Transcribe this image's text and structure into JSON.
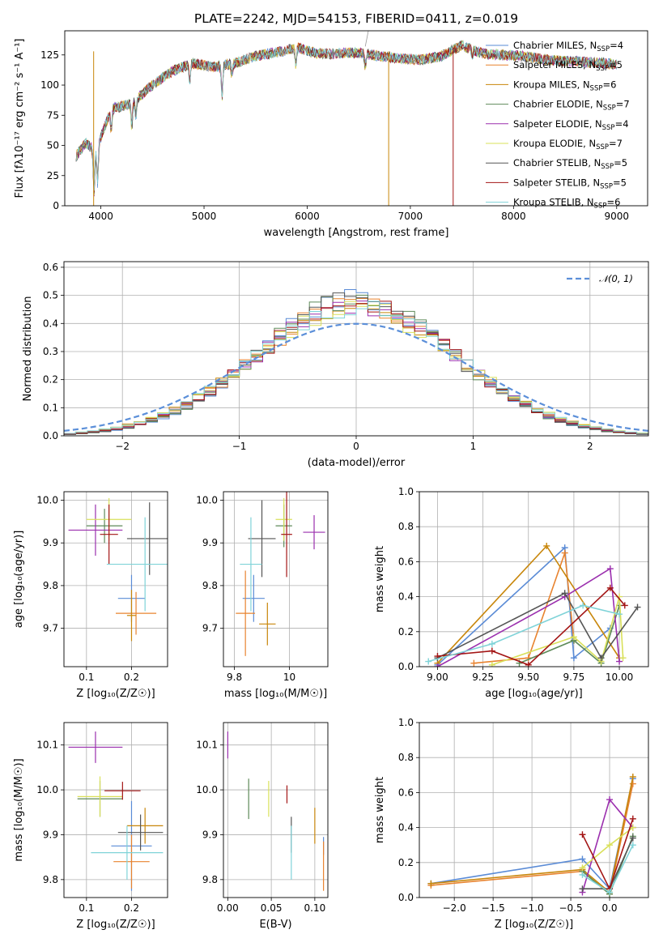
{
  "title": "PLATE=2242, MJD=54153, FIBERID=0411, z=0.019",
  "colors": {
    "Chabrier MILES": "#5a8bd6",
    "Salpeter MILES": "#e8832f",
    "Kroupa MILES": "#c8860a",
    "Chabrier ELODIE": "#5e8a59",
    "Salpeter ELODIE": "#9b2fae",
    "Kroupa ELODIE": "#d9e05a",
    "Chabrier STELIB": "#555555",
    "Salpeter STELIB": "#a31515",
    "Kroupa STELIB": "#7fd3d8"
  },
  "chart_data": [
    {
      "id": "spectrum",
      "type": "line",
      "xlabel": "wavelength [Angstrom, rest frame]",
      "ylabel": "Flux [fλ10⁻¹⁷ erg cm⁻² s⁻¹ A⁻¹]",
      "xlim": [
        3650,
        9300
      ],
      "ylim": [
        0,
        145
      ],
      "xticks": [
        4000,
        5000,
        6000,
        7000,
        8000,
        9000
      ],
      "yticks": [
        0,
        25,
        50,
        75,
        100,
        125
      ],
      "grid": false,
      "legend_position": "right",
      "x": [
        3750,
        3850,
        3950,
        4100,
        4300,
        4500,
        4700,
        4900,
        5100,
        5300,
        5500,
        5700,
        5900,
        6100,
        6300,
        6500,
        6700,
        6900,
        7100,
        7300,
        7500,
        7700,
        7900,
        8100,
        8300,
        8500,
        8700,
        8900,
        9000
      ],
      "y": [
        40,
        52,
        45,
        80,
        85,
        100,
        112,
        118,
        115,
        118,
        124,
        127,
        131,
        126,
        126,
        127,
        124,
        122,
        121,
        124,
        133,
        126,
        125,
        124,
        121,
        120,
        119,
        118,
        117
      ],
      "series": [
        {
          "name": "Chabrier MILES, N_SSP=4"
        },
        {
          "name": "Salpeter MILES, N_SSP=5"
        },
        {
          "name": "Kroupa MILES, N_SSP=6"
        },
        {
          "name": "Chabrier ELODIE, N_SSP=7"
        },
        {
          "name": "Salpeter ELODIE, N_SSP=4"
        },
        {
          "name": "Kroupa ELODIE, N_SSP=7"
        },
        {
          "name": "Chabrier STELIB, N_SSP=5"
        },
        {
          "name": "Salpeter STELIB, N_SSP=5"
        },
        {
          "name": "Kroupa STELIB, N_SSP=6"
        }
      ]
    },
    {
      "id": "residuals",
      "type": "line",
      "xlabel": "(data-model)/error",
      "ylabel": "Normed distribution",
      "xlim": [
        -2.5,
        2.5
      ],
      "ylim": [
        0,
        0.62
      ],
      "xticks": [
        -2,
        -1,
        0,
        1,
        2
      ],
      "yticks": [
        0.0,
        0.1,
        0.2,
        0.3,
        0.4,
        0.5,
        0.6
      ],
      "grid": true,
      "legend": "𝒩(0, 1)",
      "legend_position": "top-right",
      "bin_width": 0.1
    },
    {
      "id": "age-vs-Z",
      "type": "scatter",
      "xlabel": "Z [log₁₀(Z/Z☉)]",
      "ylabel": "age  [log₁₀(age/yr)]",
      "xlim": [
        0.05,
        0.28
      ],
      "ylim": [
        9.61,
        10.02
      ],
      "xticks": [
        0.1,
        0.2
      ],
      "yticks": [
        9.7,
        9.8,
        9.9,
        10.0
      ],
      "grid": true,
      "points": [
        {
          "series": "Chabrier MILES",
          "x": 0.2,
          "y": 9.77,
          "xerr": 0.03,
          "yerr": 0.055
        },
        {
          "series": "Salpeter MILES",
          "x": 0.21,
          "y": 9.735,
          "xerr": 0.045,
          "yerr": 0.05
        },
        {
          "series": "Kroupa MILES",
          "x": 0.2,
          "y": 9.73,
          "xerr": 0.01,
          "yerr": 0.06
        },
        {
          "series": "Chabrier ELODIE",
          "x": 0.14,
          "y": 9.94,
          "xerr": 0.04,
          "yerr": 0.04
        },
        {
          "series": "Salpeter ELODIE",
          "x": 0.12,
          "y": 9.93,
          "xerr": 0.06,
          "yerr": 0.06
        },
        {
          "series": "Kroupa ELODIE",
          "x": 0.15,
          "y": 9.955,
          "xerr": 0.05,
          "yerr": 0.05
        },
        {
          "series": "Chabrier STELIB",
          "x": 0.24,
          "y": 9.91,
          "xerr": 0.05,
          "yerr": 0.085
        },
        {
          "series": "Salpeter STELIB",
          "x": 0.15,
          "y": 9.92,
          "xerr": 0.02,
          "yerr": 0.07
        },
        {
          "series": "Kroupa STELIB",
          "x": 0.23,
          "y": 9.85,
          "xerr": 0.085,
          "yerr": 0.11
        }
      ]
    },
    {
      "id": "age-vs-mass",
      "type": "scatter",
      "xlabel": "mass [log₁₀(M/M☉)]",
      "ylabel": "",
      "xlim": [
        9.76,
        10.14
      ],
      "ylim": [
        9.61,
        10.02
      ],
      "xticks": [
        9.8,
        10.0
      ],
      "yticks": [
        9.7,
        9.8,
        9.9,
        10.0
      ],
      "grid": true,
      "points": [
        {
          "series": "Chabrier MILES",
          "x": 9.87,
          "y": 9.77,
          "xerr": 0.04,
          "yerr": 0.055
        },
        {
          "series": "Salpeter MILES",
          "x": 9.84,
          "y": 9.735,
          "xerr": 0.035,
          "yerr": 0.1
        },
        {
          "series": "Kroupa MILES",
          "x": 9.92,
          "y": 9.71,
          "xerr": 0.03,
          "yerr": 0.05
        },
        {
          "series": "Chabrier ELODIE",
          "x": 9.98,
          "y": 9.94,
          "xerr": 0.03,
          "yerr": 0.05
        },
        {
          "series": "Salpeter ELODIE",
          "x": 10.09,
          "y": 9.925,
          "xerr": 0.04,
          "yerr": 0.04
        },
        {
          "series": "Kroupa ELODIE",
          "x": 9.98,
          "y": 9.955,
          "xerr": 0.03,
          "yerr": 0.05
        },
        {
          "series": "Chabrier STELIB",
          "x": 9.9,
          "y": 9.91,
          "xerr": 0.05,
          "yerr": 0.09
        },
        {
          "series": "Salpeter STELIB",
          "x": 9.99,
          "y": 9.92,
          "xerr": 0.02,
          "yerr": 0.1
        },
        {
          "series": "Kroupa STELIB",
          "x": 9.86,
          "y": 9.85,
          "xerr": 0.04,
          "yerr": 0.11
        }
      ]
    },
    {
      "id": "mass-weight-vs-age",
      "type": "line",
      "xlabel": "age  [log₁₀(age/yr)]",
      "ylabel": "mass weight",
      "xlim": [
        8.9,
        10.16
      ],
      "ylim": [
        0,
        1.0
      ],
      "xticks": [
        9.0,
        9.25,
        9.5,
        9.75,
        10.0
      ],
      "xtick_labels": [
        "9.00",
        "9.25",
        "9.50",
        "9.75",
        "10.00"
      ],
      "yticks": [
        0.0,
        0.2,
        0.4,
        0.6,
        0.8,
        1.0
      ],
      "grid": true,
      "series": [
        {
          "key": "Chabrier MILES",
          "x": [
            9.0,
            9.7,
            9.75,
            9.95
          ],
          "y": [
            0.01,
            0.68,
            0.05,
            0.22
          ]
        },
        {
          "key": "Salpeter MILES",
          "x": [
            9.2,
            9.5,
            9.7,
            9.75
          ],
          "y": [
            0.02,
            0.05,
            0.65,
            0.15
          ]
        },
        {
          "key": "Kroupa MILES",
          "x": [
            9.0,
            9.6,
            10.0
          ],
          "y": [
            0.02,
            0.69,
            0.05
          ]
        },
        {
          "key": "Chabrier ELODIE",
          "x": [
            9.45,
            9.75,
            9.9,
            10.0
          ],
          "y": [
            0.02,
            0.15,
            0.02,
            0.35
          ]
        },
        {
          "key": "Salpeter ELODIE",
          "x": [
            9.0,
            9.7,
            9.95,
            10.0
          ],
          "y": [
            0.0,
            0.4,
            0.56,
            0.03
          ]
        },
        {
          "key": "Kroupa ELODIE",
          "x": [
            9.3,
            9.75,
            9.9,
            10.0,
            10.02
          ],
          "y": [
            0.01,
            0.17,
            0.03,
            0.4,
            0.05
          ]
        },
        {
          "key": "Chabrier STELIB",
          "x": [
            9.0,
            9.7,
            9.9,
            10.1
          ],
          "y": [
            0.05,
            0.42,
            0.05,
            0.34
          ]
        },
        {
          "key": "Salpeter STELIB",
          "x": [
            9.0,
            9.3,
            9.5,
            9.95,
            10.03
          ],
          "y": [
            0.06,
            0.09,
            0.01,
            0.45,
            0.35
          ]
        },
        {
          "key": "Kroupa STELIB",
          "x": [
            8.95,
            9.3,
            9.8,
            10.0
          ],
          "y": [
            0.03,
            0.13,
            0.35,
            0.3
          ]
        }
      ]
    },
    {
      "id": "mass-vs-Z",
      "type": "scatter",
      "xlabel": "Z [log₁₀(Z/Z☉)]",
      "ylabel": "mass [log₁₀(M/M☉)]",
      "xlim": [
        0.05,
        0.28
      ],
      "ylim": [
        9.76,
        10.15
      ],
      "xticks": [
        0.1,
        0.2
      ],
      "yticks": [
        9.8,
        9.9,
        10.0,
        10.1
      ],
      "grid": true,
      "points": [
        {
          "series": "Chabrier MILES",
          "x": 0.2,
          "y": 9.875,
          "xerr": 0.045,
          "yerr": 0.1
        },
        {
          "series": "Salpeter MILES",
          "x": 0.2,
          "y": 9.84,
          "xerr": 0.04,
          "yerr": 0.06
        },
        {
          "series": "Kroupa MILES",
          "x": 0.23,
          "y": 9.92,
          "xerr": 0.04,
          "yerr": 0.04
        },
        {
          "series": "Chabrier ELODIE",
          "x": 0.13,
          "y": 9.98,
          "xerr": 0.05,
          "yerr": 0.04
        },
        {
          "series": "Salpeter ELODIE",
          "x": 0.12,
          "y": 10.095,
          "xerr": 0.06,
          "yerr": 0.035
        },
        {
          "series": "Kroupa ELODIE",
          "x": 0.13,
          "y": 9.985,
          "xerr": 0.05,
          "yerr": 0.045
        },
        {
          "series": "Chabrier STELIB",
          "x": 0.22,
          "y": 9.905,
          "xerr": 0.05,
          "yerr": 0.04
        },
        {
          "series": "Salpeter STELIB",
          "x": 0.18,
          "y": 9.998,
          "xerr": 0.04,
          "yerr": 0.02
        },
        {
          "series": "Kroupa STELIB",
          "x": 0.19,
          "y": 9.86,
          "xerr": 0.08,
          "yerr": 0.06
        }
      ]
    },
    {
      "id": "mass-vs-ebv",
      "type": "scatter",
      "xlabel": "E(B-V)",
      "ylabel": "",
      "xlim": [
        -0.005,
        0.115
      ],
      "ylim": [
        9.76,
        10.15
      ],
      "xticks": [
        0.0,
        0.05,
        0.1
      ],
      "xtick_labels": [
        "0.00",
        "0.05",
        "0.10"
      ],
      "yticks": [
        9.8,
        9.9,
        10.0,
        10.1
      ],
      "grid": true,
      "points": [
        {
          "series": "Salpeter ELODIE",
          "x": 0.0,
          "y": 10.1,
          "yerr": 0.03
        },
        {
          "series": "Chabrier ELODIE",
          "x": 0.024,
          "y": 9.98,
          "yerr": 0.045
        },
        {
          "series": "Kroupa ELODIE",
          "x": 0.047,
          "y": 9.98,
          "yerr": 0.04
        },
        {
          "series": "Salpeter STELIB",
          "x": 0.068,
          "y": 9.99,
          "yerr": 0.02
        },
        {
          "series": "Chabrier STELIB",
          "x": 0.073,
          "y": 9.9,
          "yerr": 0.04
        },
        {
          "series": "Kroupa STELIB",
          "x": 0.073,
          "y": 9.86,
          "yerr": 0.06
        },
        {
          "series": "Kroupa MILES",
          "x": 0.1,
          "y": 9.92,
          "yerr": 0.04
        },
        {
          "series": "Chabrier MILES",
          "x": 0.11,
          "y": 9.875,
          "yerr": 0.02
        },
        {
          "series": "Salpeter MILES",
          "x": 0.11,
          "y": 9.83,
          "yerr": 0.055
        }
      ]
    },
    {
      "id": "mass-weight-vs-Z",
      "type": "line",
      "xlabel": "Z [log₁₀(Z/Z☉)]",
      "ylabel": "mass weight",
      "xlim": [
        -2.45,
        0.5
      ],
      "ylim": [
        0,
        1.0
      ],
      "xticks": [
        -2.0,
        -1.5,
        -1.0,
        -0.5,
        0.0
      ],
      "xtick_labels": [
        "−2.0",
        "−1.5",
        "−1.0",
        "−0.5",
        "0.0"
      ],
      "yticks": [
        0.0,
        0.2,
        0.4,
        0.6,
        0.8,
        1.0
      ],
      "grid": true,
      "series": [
        {
          "key": "Chabrier MILES",
          "x": [
            -2.3,
            -0.35,
            0.0,
            0.3
          ],
          "y": [
            0.08,
            0.22,
            0.05,
            0.68
          ]
        },
        {
          "key": "Salpeter MILES",
          "x": [
            -2.3,
            -0.35,
            0.0,
            0.3
          ],
          "y": [
            0.07,
            0.15,
            0.02,
            0.65
          ]
        },
        {
          "key": "Kroupa MILES",
          "x": [
            -2.3,
            -0.35,
            0.0,
            0.3
          ],
          "y": [
            0.08,
            0.16,
            0.03,
            0.69
          ]
        },
        {
          "key": "Chabrier ELODIE",
          "x": [
            -0.35,
            0.0,
            0.3
          ],
          "y": [
            0.15,
            0.02,
            0.35
          ]
        },
        {
          "key": "Salpeter ELODIE",
          "x": [
            -0.35,
            0.0,
            0.3
          ],
          "y": [
            0.03,
            0.56,
            0.4
          ]
        },
        {
          "key": "Kroupa ELODIE",
          "x": [
            -0.35,
            0.0,
            0.3
          ],
          "y": [
            0.17,
            0.3,
            0.4
          ]
        },
        {
          "key": "Chabrier STELIB",
          "x": [
            -0.35,
            0.0,
            0.3
          ],
          "y": [
            0.05,
            0.05,
            0.34
          ]
        },
        {
          "key": "Salpeter STELIB",
          "x": [
            -0.35,
            0.0,
            0.3
          ],
          "y": [
            0.36,
            0.05,
            0.45
          ]
        },
        {
          "key": "Kroupa STELIB",
          "x": [
            -0.35,
            0.0,
            0.3
          ],
          "y": [
            0.13,
            0.03,
            0.3
          ]
        }
      ]
    }
  ]
}
